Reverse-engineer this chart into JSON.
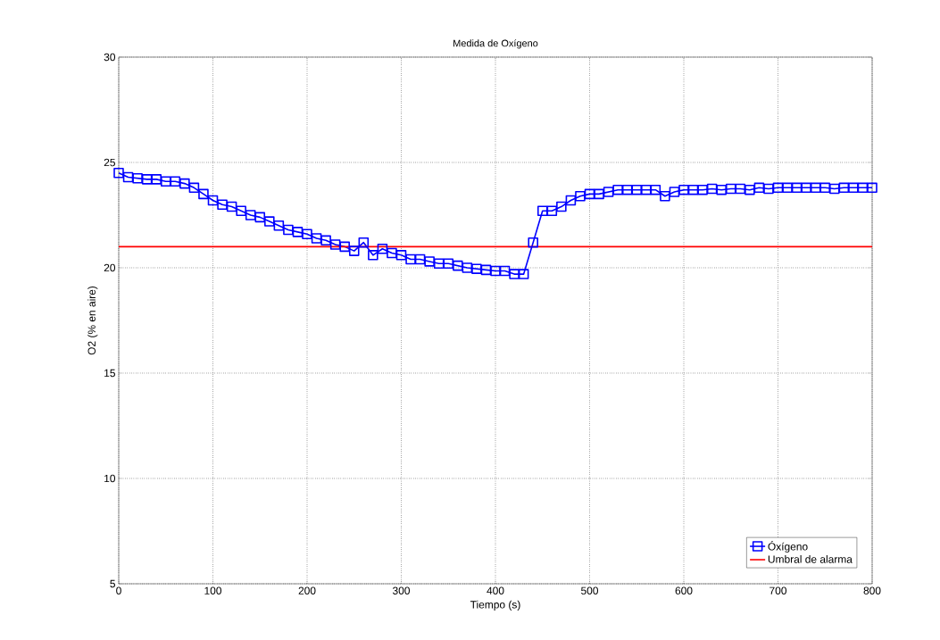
{
  "chart_data": {
    "type": "line",
    "title": "Medida de Oxígeno",
    "xlabel": "Tiempo (s)",
    "ylabel": "O2 (% en aire)",
    "xlim": [
      0,
      800
    ],
    "ylim": [
      5,
      30
    ],
    "xticks": [
      0,
      100,
      200,
      300,
      400,
      500,
      600,
      700,
      800
    ],
    "yticks": [
      5,
      10,
      15,
      20,
      25,
      30
    ],
    "grid": true,
    "legend": "bottom right",
    "series": [
      {
        "name": "Óxígeno",
        "color": "#0000ff",
        "marker": "square",
        "x": [
          0,
          10,
          20,
          30,
          40,
          50,
          60,
          70,
          80,
          90,
          100,
          110,
          120,
          130,
          140,
          150,
          160,
          170,
          180,
          190,
          200,
          210,
          220,
          230,
          240,
          250,
          260,
          270,
          280,
          290,
          300,
          310,
          320,
          330,
          340,
          350,
          360,
          370,
          380,
          390,
          400,
          410,
          420,
          430,
          440,
          450,
          460,
          470,
          480,
          490,
          500,
          510,
          520,
          530,
          540,
          550,
          560,
          570,
          580,
          590,
          600,
          610,
          620,
          630,
          640,
          650,
          660,
          670,
          680,
          690,
          700,
          710,
          720,
          730,
          740,
          750,
          760,
          770,
          780,
          790,
          800
        ],
        "values": [
          24.5,
          24.3,
          24.25,
          24.2,
          24.2,
          24.1,
          24.1,
          24.0,
          23.8,
          23.5,
          23.2,
          23.0,
          22.9,
          22.7,
          22.5,
          22.4,
          22.2,
          22.0,
          21.8,
          21.7,
          21.6,
          21.4,
          21.3,
          21.1,
          21.0,
          20.8,
          21.2,
          20.6,
          20.9,
          20.7,
          20.6,
          20.4,
          20.4,
          20.3,
          20.2,
          20.2,
          20.1,
          20.0,
          19.95,
          19.9,
          19.85,
          19.85,
          19.7,
          19.7,
          21.2,
          22.7,
          22.7,
          22.9,
          23.2,
          23.4,
          23.5,
          23.5,
          23.6,
          23.7,
          23.7,
          23.7,
          23.7,
          23.7,
          23.4,
          23.6,
          23.7,
          23.7,
          23.7,
          23.75,
          23.7,
          23.75,
          23.75,
          23.7,
          23.8,
          23.75,
          23.8,
          23.8,
          23.8,
          23.8,
          23.8,
          23.8,
          23.75,
          23.8,
          23.8,
          23.8,
          23.8
        ]
      },
      {
        "name": "Umbral de alarma",
        "color": "#ff0000",
        "marker": "none",
        "x": [
          0,
          800
        ],
        "values": [
          21,
          21
        ]
      }
    ]
  }
}
